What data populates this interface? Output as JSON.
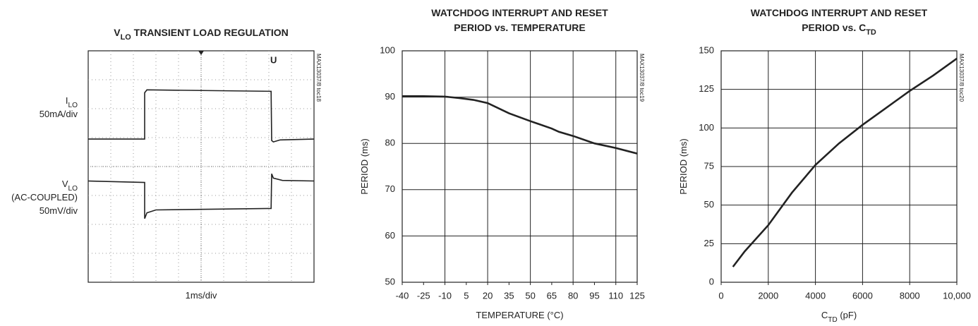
{
  "chart_data": [
    {
      "type": "oscilloscope",
      "title": [
        [
          "V",
          {
            "text": "LO",
            "sub": true
          },
          " TRANSIENT LOAD REGULATION"
        ]
      ],
      "channel_labels": [
        [
          [
            "I",
            {
              "text": "LO",
              "sub": true
            }
          ],
          [
            "50mA/div"
          ]
        ],
        [
          [
            "V",
            {
              "text": "LO",
              "sub": true
            }
          ],
          [
            "(AC-COUPLED)"
          ],
          [
            "50mV/div"
          ]
        ]
      ],
      "xlabel": [
        [
          "1ms/div"
        ]
      ],
      "side_label": "MAX13037/8 toc18",
      "xlim": [
        0,
        10
      ],
      "ylim": [
        0,
        8
      ],
      "series": [
        {
          "color": "#222222",
          "x": [
            0,
            2.5,
            2.5,
            2.6,
            8.1,
            8.125,
            8.2,
            8.5,
            10
          ],
          "values": [
            4.95,
            4.95,
            6.55,
            6.65,
            6.6,
            4.9,
            4.85,
            4.92,
            4.95
          ]
        },
        {
          "color": "#222222",
          "x": [
            0,
            2.5,
            2.5,
            2.6,
            3,
            8.1,
            8.125,
            8.2,
            8.6,
            10
          ],
          "values": [
            3.5,
            3.45,
            2.2,
            2.4,
            2.5,
            2.55,
            3.75,
            3.6,
            3.52,
            3.5
          ]
        }
      ]
    },
    {
      "type": "line",
      "title": [
        [
          "WATCHDOG INTERRUPT AND RESET"
        ],
        [
          "PERIOD vs. TEMPERATURE"
        ]
      ],
      "xlabel": [
        [
          "TEMPERATURE (°C)"
        ]
      ],
      "ylabel": [
        [
          "PERIOD (ms)"
        ]
      ],
      "side_label": "MAX13037/8 toc19",
      "xlim": [
        -40,
        125
      ],
      "xticks": [
        -40,
        -25,
        -10,
        5,
        20,
        35,
        50,
        65,
        80,
        95,
        110,
        125
      ],
      "ylim": [
        50,
        100
      ],
      "yticks": [
        50,
        60,
        70,
        80,
        90,
        100
      ],
      "grid": true,
      "series": [
        {
          "color": "#222222",
          "x": [
            -40,
            -25,
            -10,
            0,
            10,
            20,
            35,
            50,
            65,
            70,
            80,
            95,
            110,
            125
          ],
          "values": [
            90.2,
            90.2,
            90.1,
            89.8,
            89.4,
            88.7,
            86.5,
            84.8,
            83.2,
            82.5,
            81.6,
            80,
            79,
            77.8
          ]
        }
      ]
    },
    {
      "type": "line",
      "title": [
        [
          "WATCHDOG INTERRUPT AND RESET"
        ],
        [
          "PERIOD vs. C",
          {
            "text": "TD",
            "sub": true
          }
        ]
      ],
      "xlabel": [
        [
          "C",
          {
            "text": "TD",
            "sub": true
          },
          " (pF)"
        ]
      ],
      "ylabel": [
        [
          "PERIOD (ms)"
        ]
      ],
      "side_label": "MAX13037/8 toc20",
      "xlim": [
        0,
        10000
      ],
      "xticks": [
        0,
        2000,
        4000,
        6000,
        8000,
        {
          "value": 10000,
          "label": "10,000"
        }
      ],
      "ylim": [
        0,
        150
      ],
      "yticks": [
        0,
        25,
        50,
        75,
        100,
        125,
        150
      ],
      "grid": true,
      "series": [
        {
          "color": "#222222",
          "x": [
            500,
            1000,
            2000,
            3000,
            4000,
            5000,
            6000,
            7000,
            8000,
            9000,
            10000
          ],
          "values": [
            10,
            20,
            37,
            58,
            76,
            90,
            102,
            113,
            124,
            134,
            145
          ]
        }
      ]
    }
  ]
}
